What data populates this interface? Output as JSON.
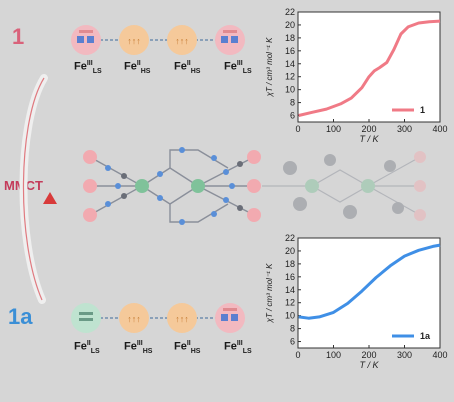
{
  "labels": {
    "compound_top": "1",
    "compound_bottom": "1a",
    "transfer": "MMCT"
  },
  "top_sites": [
    {
      "base": "Fe",
      "sup": "III",
      "sub": "LS"
    },
    {
      "base": "Fe",
      "sup": "II",
      "sub": "HS"
    },
    {
      "base": "Fe",
      "sup": "II",
      "sub": "HS"
    },
    {
      "base": "Fe",
      "sup": "III",
      "sub": "LS"
    }
  ],
  "bottom_sites": [
    {
      "base": "Fe",
      "sup": "II",
      "sub": "LS"
    },
    {
      "base": "Fe",
      "sup": "III",
      "sub": "HS"
    },
    {
      "base": "Fe",
      "sup": "II",
      "sub": "HS"
    },
    {
      "base": "Fe",
      "sup": "III",
      "sub": "LS"
    }
  ],
  "colors": {
    "background": "#d6d6d6",
    "label_1": "#d9627a",
    "label_1a": "#3b8fd6",
    "mmct": "#c43a5a",
    "arrow": "#d83a3a",
    "curve_1": "#f07a86",
    "curve_1a": "#3f8fe6"
  },
  "chart_data": [
    {
      "type": "line",
      "xlabel": "T / K",
      "ylabel": "χT / cm³ mol⁻¹ K",
      "xlim": [
        0,
        400
      ],
      "ylim": [
        5,
        22
      ],
      "xticks": [
        0,
        100,
        200,
        300,
        400
      ],
      "yticks": [
        6,
        8,
        10,
        12,
        14,
        16,
        18,
        20,
        22
      ],
      "legend_position": "bottom-right",
      "series": [
        {
          "name": "1",
          "color": "#f07a86",
          "x": [
            2,
            40,
            80,
            120,
            150,
            180,
            200,
            215,
            230,
            250,
            270,
            290,
            310,
            340,
            370,
            400
          ],
          "y": [
            6.0,
            6.5,
            7.0,
            7.8,
            8.7,
            10.3,
            12.0,
            12.9,
            13.4,
            14.2,
            16.2,
            18.6,
            19.7,
            20.3,
            20.5,
            20.6
          ]
        }
      ]
    },
    {
      "type": "line",
      "xlabel": "T / K",
      "ylabel": "χT / cm³ mol⁻¹ K",
      "xlim": [
        0,
        400
      ],
      "ylim": [
        5,
        22
      ],
      "xticks": [
        0,
        100,
        200,
        300,
        400
      ],
      "yticks": [
        6,
        8,
        10,
        12,
        14,
        16,
        18,
        20,
        22
      ],
      "legend_position": "bottom-right",
      "series": [
        {
          "name": "1a",
          "color": "#3f8fe6",
          "x": [
            2,
            30,
            60,
            100,
            140,
            180,
            220,
            260,
            300,
            340,
            380,
            400
          ],
          "y": [
            9.8,
            9.6,
            9.8,
            10.5,
            11.9,
            13.8,
            15.9,
            17.7,
            19.2,
            20.1,
            20.7,
            20.9
          ]
        }
      ]
    }
  ]
}
